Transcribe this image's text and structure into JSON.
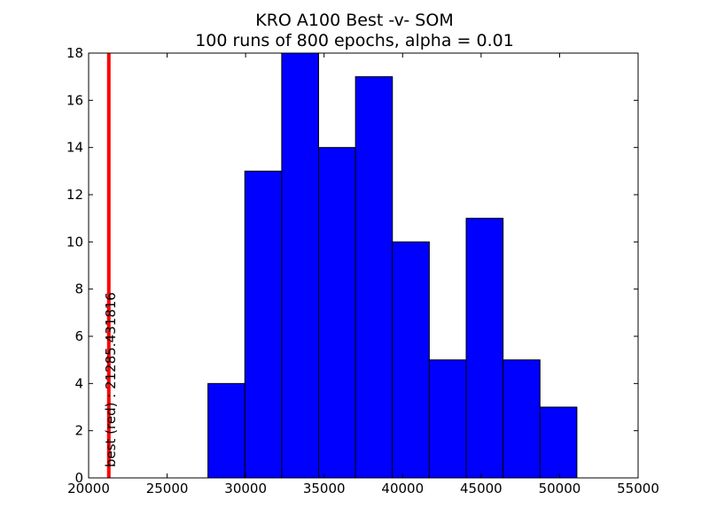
{
  "chart_data": {
    "type": "bar",
    "title": "KRO A100 Best -v- SOM",
    "subtitle": "100 runs of 800 epochs, alpha = 0.01",
    "xlabel": "",
    "ylabel": "",
    "xlim": [
      20000,
      55000
    ],
    "ylim": [
      0,
      18
    ],
    "xticks": [
      20000,
      25000,
      30000,
      35000,
      40000,
      45000,
      50000,
      55000
    ],
    "yticks": [
      0,
      2,
      4,
      6,
      8,
      10,
      12,
      14,
      16,
      18
    ],
    "bin_edges": [
      27600,
      29950,
      32300,
      34650,
      37000,
      39350,
      41700,
      44050,
      46400,
      48750,
      51100
    ],
    "counts": [
      4,
      13,
      18,
      14,
      17,
      10,
      5,
      11,
      5,
      3
    ],
    "bar_color": "#0000ff",
    "grid": false,
    "reference_line": {
      "x": 21285.431816,
      "color": "#ff0000",
      "label": "best (red) : 21285.431816"
    }
  }
}
